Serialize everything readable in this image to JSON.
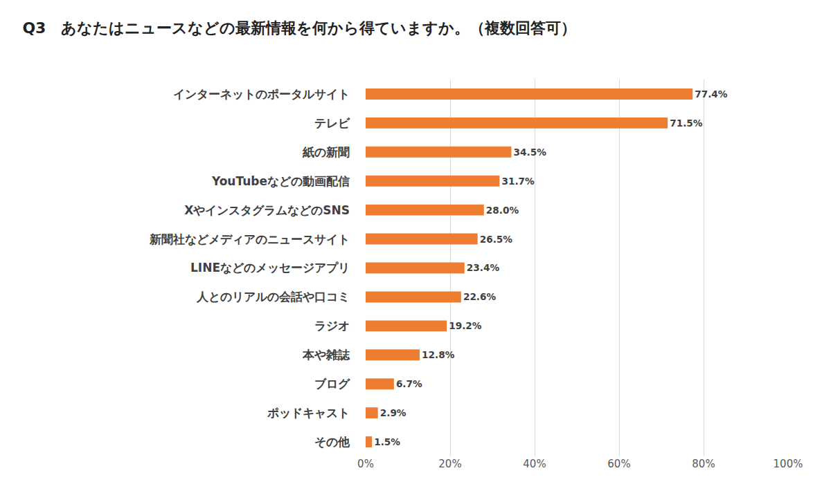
{
  "chart_data": {
    "type": "bar",
    "title": "Q3　あなたはニュースなどの最新情報を何から得ていますか。（複数回答可）",
    "orientation": "horizontal",
    "categories": [
      "インターネットのポータルサイト",
      "テレビ",
      "紙の新聞",
      "YouTubeなどの動画配信",
      "XやインスタグラムなどのSNS",
      "新聞社などメディアのニュースサイト",
      "LINEなどのメッセージアプリ",
      "人とのリアルの会話や口コミ",
      "ラジオ",
      "本や雑誌",
      "ブログ",
      "ポッドキャスト",
      "その他"
    ],
    "values": [
      77.4,
      71.5,
      34.5,
      31.7,
      28.0,
      26.5,
      23.4,
      22.6,
      19.2,
      12.8,
      6.7,
      2.9,
      1.5
    ],
    "value_labels": [
      "77.4%",
      "71.5%",
      "34.5%",
      "31.7%",
      "28.0%",
      "26.5%",
      "23.4%",
      "22.6%",
      "19.2%",
      "12.8%",
      "6.7%",
      "2.9%",
      "1.5%"
    ],
    "data_labels": true,
    "color": "#ed7d31",
    "xlim": [
      0,
      100
    ],
    "xticks": [
      {
        "value": 0,
        "label": "0%"
      },
      {
        "value": 20,
        "label": "20%"
      },
      {
        "value": 40,
        "label": "40%"
      },
      {
        "value": 60,
        "label": "60%"
      },
      {
        "value": 80,
        "label": "80%"
      },
      {
        "value": 100,
        "label": "100%"
      }
    ],
    "grid": true
  }
}
